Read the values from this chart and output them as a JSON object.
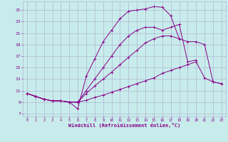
{
  "xlabel": "Windchill (Refroidissement éolien,°C)",
  "xlim": [
    -0.5,
    23.5
  ],
  "ylim": [
    6.5,
    26.5
  ],
  "xticks": [
    0,
    1,
    2,
    3,
    4,
    5,
    6,
    7,
    8,
    9,
    10,
    11,
    12,
    13,
    14,
    15,
    16,
    17,
    18,
    19,
    20,
    21,
    22,
    23
  ],
  "yticks": [
    7,
    9,
    11,
    13,
    15,
    17,
    19,
    21,
    23,
    25
  ],
  "bg_color": "#c8ecec",
  "grid_color": "#aaaacc",
  "line_color": "#880088",
  "lines": [
    {
      "x": [
        0,
        1,
        2,
        3,
        4,
        5,
        6,
        7,
        8,
        9,
        10,
        11,
        12,
        13,
        14,
        15,
        16,
        17,
        18,
        19,
        20,
        21,
        22,
        23
      ],
      "y": [
        10.5,
        10.0,
        9.5,
        9.2,
        9.2,
        9.0,
        9.0,
        9.3,
        9.8,
        10.2,
        10.7,
        11.2,
        11.7,
        12.2,
        12.7,
        13.2,
        14.0,
        14.5,
        15.0,
        15.5,
        16.0,
        13.2,
        12.5,
        12.2
      ]
    },
    {
      "x": [
        0,
        1,
        2,
        3,
        4,
        5,
        6,
        7,
        8,
        9,
        10,
        11,
        12,
        13,
        14,
        15,
        16,
        17,
        18,
        19,
        20,
        21,
        22,
        23
      ],
      "y": [
        10.5,
        10.0,
        9.5,
        9.2,
        9.2,
        9.0,
        9.0,
        10.5,
        11.8,
        13.0,
        14.2,
        15.5,
        16.8,
        18.0,
        19.3,
        20.0,
        20.5,
        20.5,
        20.0,
        19.5,
        19.5,
        19.0,
        12.5,
        12.2
      ]
    },
    {
      "x": [
        0,
        1,
        2,
        3,
        4,
        5,
        6,
        7,
        8,
        9,
        10,
        11,
        12,
        13,
        14,
        15,
        16,
        17,
        18,
        19,
        20
      ],
      "y": [
        10.5,
        10.0,
        9.5,
        9.2,
        9.2,
        9.0,
        9.0,
        11.0,
        13.0,
        15.0,
        17.0,
        19.0,
        20.5,
        21.5,
        22.0,
        22.0,
        21.5,
        22.0,
        22.5,
        16.0,
        16.3
      ]
    },
    {
      "x": [
        0,
        1,
        2,
        3,
        4,
        5,
        6,
        7,
        8,
        9,
        10,
        11,
        12,
        13,
        14,
        15,
        16,
        17,
        18
      ],
      "y": [
        10.5,
        10.0,
        9.5,
        9.2,
        9.2,
        9.0,
        7.8,
        13.5,
        16.5,
        19.5,
        21.5,
        23.5,
        24.8,
        25.0,
        25.2,
        25.6,
        25.5,
        24.0,
        20.0
      ]
    }
  ]
}
